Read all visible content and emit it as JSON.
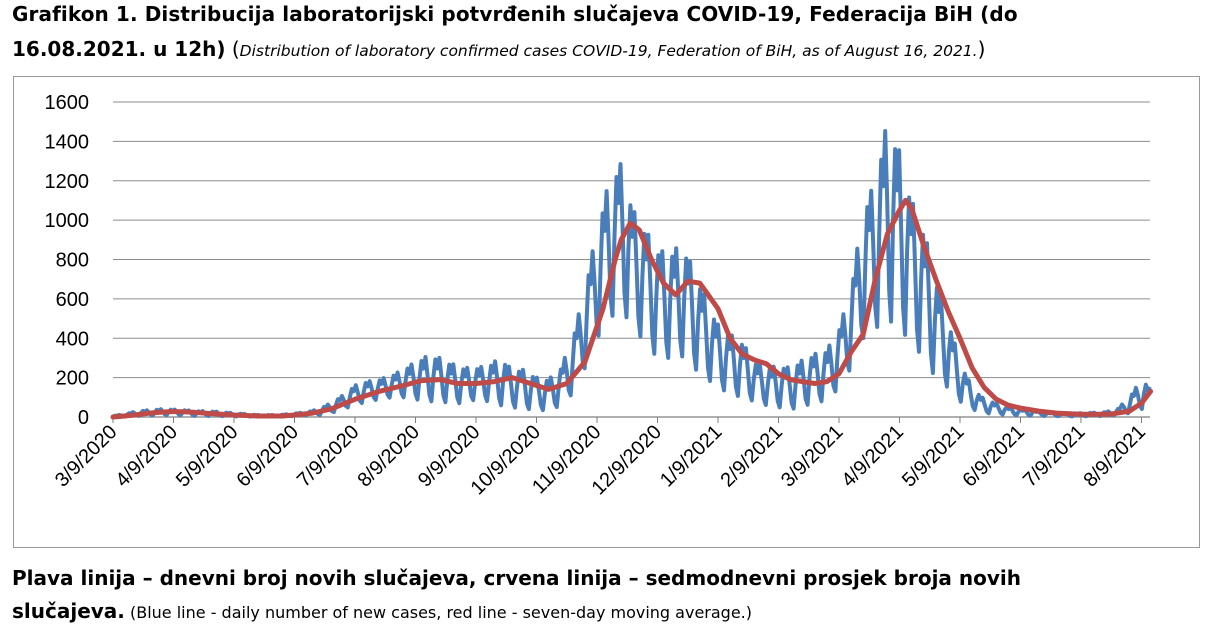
{
  "title": {
    "line1": "Grafikon 1. Distribucija laboratorijski potvrđenih slučajeva COVID-19, Federacija BiH (do",
    "line2_bold": "16.08.2021. u 12h)",
    "line2_paren_open": " (",
    "line2_italic": "Distribution of laboratory confirmed cases COVID-19, Federation of BiH, as of August 16, 2021.",
    "line2_paren_close": ")"
  },
  "caption": {
    "line1_bold": "Plava linija – dnevni broj novih slučajeva, crvena linija – sedmodnevni prosjek broja novih",
    "line2_bold": "slučajeva.",
    "line2_normal": " (Blue line - daily number of new cases, red line - seven-day moving average.)"
  },
  "colors": {
    "daily": "#4a7ebb",
    "average": "#be4b48",
    "grid": "#8c8c8c"
  },
  "chart_data": {
    "type": "line",
    "ylim": [
      0,
      1600
    ],
    "yticks": [
      "0",
      "200",
      "400",
      "600",
      "800",
      "1000",
      "1200",
      "1400",
      "1600"
    ],
    "categories": [
      "3/9/2020",
      "4/9/2020",
      "5/9/2020",
      "6/9/2020",
      "7/9/2020",
      "8/9/2020",
      "9/9/2020",
      "10/9/2020",
      "11/9/2020",
      "12/9/2020",
      "1/9/2021",
      "2/9/2021",
      "3/9/2021",
      "4/9/2021",
      "5/9/2021",
      "6/9/2021",
      "7/9/2021",
      "8/9/2021"
    ],
    "grid": true,
    "legend": "none",
    "series": [
      {
        "key": "daily",
        "weekly_peaks": [
          [
            0,
            5
          ],
          [
            0.2,
            15
          ],
          [
            0.4,
            30
          ],
          [
            0.6,
            35
          ],
          [
            0.8,
            40
          ],
          [
            1.0,
            38
          ],
          [
            1.2,
            35
          ],
          [
            1.4,
            30
          ],
          [
            1.6,
            30
          ],
          [
            1.8,
            25
          ],
          [
            2.0,
            20
          ],
          [
            2.2,
            15
          ],
          [
            2.4,
            10
          ],
          [
            2.6,
            10
          ],
          [
            2.8,
            12
          ],
          [
            3.0,
            18
          ],
          [
            3.2,
            25
          ],
          [
            3.4,
            40
          ],
          [
            3.6,
            70
          ],
          [
            3.8,
            110
          ],
          [
            4.0,
            160
          ],
          [
            4.2,
            180
          ],
          [
            4.4,
            190
          ],
          [
            4.6,
            210
          ],
          [
            4.8,
            240
          ],
          [
            5.0,
            280
          ],
          [
            5.2,
            310
          ],
          [
            5.4,
            300
          ],
          [
            5.6,
            270
          ],
          [
            5.8,
            250
          ],
          [
            6.0,
            250
          ],
          [
            6.2,
            260
          ],
          [
            6.4,
            300
          ],
          [
            6.6,
            240
          ],
          [
            6.8,
            240
          ],
          [
            7.0,
            200
          ],
          [
            7.2,
            190
          ],
          [
            7.4,
            250
          ],
          [
            7.6,
            400
          ],
          [
            7.8,
            650
          ],
          [
            8.0,
            950
          ],
          [
            8.2,
            1200
          ],
          [
            8.4,
            1290
          ],
          [
            8.6,
            1050
          ],
          [
            8.8,
            950
          ],
          [
            9.0,
            850
          ],
          [
            9.2,
            830
          ],
          [
            9.4,
            880
          ],
          [
            9.6,
            750
          ],
          [
            9.8,
            600
          ],
          [
            10.0,
            470
          ],
          [
            10.2,
            420
          ],
          [
            10.4,
            380
          ],
          [
            10.6,
            280
          ],
          [
            10.8,
            250
          ],
          [
            11.0,
            260
          ],
          [
            11.2,
            250
          ],
          [
            11.4,
            290
          ],
          [
            11.6,
            320
          ],
          [
            11.8,
            340
          ],
          [
            12.0,
            450
          ],
          [
            12.2,
            650
          ],
          [
            12.4,
            1050
          ],
          [
            12.6,
            1200
          ],
          [
            12.8,
            1510
          ],
          [
            13.0,
            1350
          ],
          [
            13.2,
            1100
          ],
          [
            13.4,
            950
          ],
          [
            13.6,
            700
          ],
          [
            13.8,
            500
          ],
          [
            14.0,
            280
          ],
          [
            14.2,
            150
          ],
          [
            14.4,
            90
          ],
          [
            14.6,
            70
          ],
          [
            14.8,
            50
          ],
          [
            15.0,
            40
          ],
          [
            15.2,
            35
          ],
          [
            15.4,
            25
          ],
          [
            15.6,
            20
          ],
          [
            15.8,
            18
          ],
          [
            16.0,
            20
          ],
          [
            16.2,
            22
          ],
          [
            16.4,
            25
          ],
          [
            16.6,
            40
          ],
          [
            16.8,
            100
          ],
          [
            17.0,
            190
          ],
          [
            17.15,
            150
          ]
        ],
        "weekly_troughs": [
          [
            0,
            0
          ],
          [
            0.2,
            3
          ],
          [
            0.4,
            5
          ],
          [
            0.6,
            8
          ],
          [
            0.8,
            10
          ],
          [
            1.0,
            10
          ],
          [
            1.2,
            8
          ],
          [
            1.4,
            5
          ],
          [
            1.6,
            5
          ],
          [
            1.8,
            4
          ],
          [
            2.0,
            3
          ],
          [
            2.2,
            2
          ],
          [
            2.4,
            2
          ],
          [
            2.6,
            2
          ],
          [
            2.8,
            3
          ],
          [
            3.0,
            5
          ],
          [
            3.2,
            8
          ],
          [
            3.4,
            10
          ],
          [
            3.6,
            20
          ],
          [
            3.8,
            40
          ],
          [
            4.0,
            60
          ],
          [
            4.2,
            80
          ],
          [
            4.4,
            90
          ],
          [
            4.6,
            100
          ],
          [
            4.8,
            100
          ],
          [
            5.0,
            90
          ],
          [
            5.2,
            80
          ],
          [
            5.4,
            80
          ],
          [
            5.6,
            70
          ],
          [
            5.8,
            70
          ],
          [
            6.0,
            90
          ],
          [
            6.2,
            80
          ],
          [
            6.4,
            60
          ],
          [
            6.6,
            50
          ],
          [
            6.8,
            40
          ],
          [
            7.0,
            40
          ],
          [
            7.2,
            30
          ],
          [
            7.4,
            60
          ],
          [
            7.6,
            120
          ],
          [
            7.8,
            250
          ],
          [
            8.0,
            400
          ],
          [
            8.2,
            500
          ],
          [
            8.4,
            550
          ],
          [
            8.6,
            450
          ],
          [
            8.8,
            380
          ],
          [
            9.0,
            300
          ],
          [
            9.2,
            300
          ],
          [
            9.4,
            310
          ],
          [
            9.6,
            250
          ],
          [
            9.8,
            200
          ],
          [
            10.0,
            150
          ],
          [
            10.2,
            120
          ],
          [
            10.4,
            100
          ],
          [
            10.6,
            80
          ],
          [
            10.8,
            60
          ],
          [
            11.0,
            50
          ],
          [
            11.2,
            40
          ],
          [
            11.4,
            50
          ],
          [
            11.6,
            80
          ],
          [
            11.8,
            80
          ],
          [
            12.0,
            150
          ],
          [
            12.2,
            250
          ],
          [
            12.4,
            400
          ],
          [
            12.6,
            450
          ],
          [
            12.8,
            500
          ],
          [
            13.0,
            450
          ],
          [
            13.2,
            380
          ],
          [
            13.4,
            300
          ],
          [
            13.6,
            200
          ],
          [
            13.8,
            150
          ],
          [
            14.0,
            80
          ],
          [
            14.2,
            40
          ],
          [
            14.4,
            20
          ],
          [
            14.6,
            15
          ],
          [
            14.8,
            10
          ],
          [
            15.0,
            8
          ],
          [
            15.2,
            6
          ],
          [
            15.4,
            5
          ],
          [
            15.6,
            4
          ],
          [
            15.8,
            3
          ],
          [
            16.0,
            3
          ],
          [
            16.2,
            4
          ],
          [
            16.4,
            5
          ],
          [
            16.6,
            10
          ],
          [
            16.8,
            20
          ],
          [
            17.0,
            40
          ],
          [
            17.15,
            50
          ]
        ]
      },
      {
        "key": "average",
        "points": [
          [
            0,
            0
          ],
          [
            0.3,
            8
          ],
          [
            0.6,
            20
          ],
          [
            0.8,
            25
          ],
          [
            1.0,
            28
          ],
          [
            1.3,
            25
          ],
          [
            1.6,
            18
          ],
          [
            2.0,
            10
          ],
          [
            2.4,
            5
          ],
          [
            2.8,
            5
          ],
          [
            3.0,
            10
          ],
          [
            3.3,
            20
          ],
          [
            3.6,
            40
          ],
          [
            4.0,
            90
          ],
          [
            4.4,
            130
          ],
          [
            4.8,
            160
          ],
          [
            5.1,
            185
          ],
          [
            5.4,
            190
          ],
          [
            5.7,
            170
          ],
          [
            6.0,
            170
          ],
          [
            6.3,
            180
          ],
          [
            6.6,
            200
          ],
          [
            6.9,
            170
          ],
          [
            7.2,
            140
          ],
          [
            7.5,
            170
          ],
          [
            7.8,
            280
          ],
          [
            8.1,
            550
          ],
          [
            8.3,
            800
          ],
          [
            8.4,
            900
          ],
          [
            8.55,
            985
          ],
          [
            8.7,
            950
          ],
          [
            8.9,
            800
          ],
          [
            9.1,
            680
          ],
          [
            9.3,
            620
          ],
          [
            9.5,
            690
          ],
          [
            9.7,
            680
          ],
          [
            10.0,
            550
          ],
          [
            10.2,
            400
          ],
          [
            10.4,
            320
          ],
          [
            10.6,
            290
          ],
          [
            10.8,
            270
          ],
          [
            11.0,
            220
          ],
          [
            11.2,
            190
          ],
          [
            11.4,
            180
          ],
          [
            11.6,
            170
          ],
          [
            11.8,
            180
          ],
          [
            12.0,
            220
          ],
          [
            12.2,
            330
          ],
          [
            12.4,
            420
          ],
          [
            12.6,
            700
          ],
          [
            12.8,
            930
          ],
          [
            13.0,
            1050
          ],
          [
            13.1,
            1100
          ],
          [
            13.2,
            1060
          ],
          [
            13.4,
            870
          ],
          [
            13.6,
            700
          ],
          [
            13.8,
            540
          ],
          [
            14.0,
            400
          ],
          [
            14.2,
            250
          ],
          [
            14.4,
            150
          ],
          [
            14.6,
            90
          ],
          [
            14.8,
            60
          ],
          [
            15.0,
            45
          ],
          [
            15.3,
            30
          ],
          [
            15.6,
            20
          ],
          [
            15.9,
            15
          ],
          [
            16.2,
            13
          ],
          [
            16.5,
            15
          ],
          [
            16.8,
            30
          ],
          [
            17.0,
            70
          ],
          [
            17.15,
            130
          ]
        ]
      }
    ]
  }
}
